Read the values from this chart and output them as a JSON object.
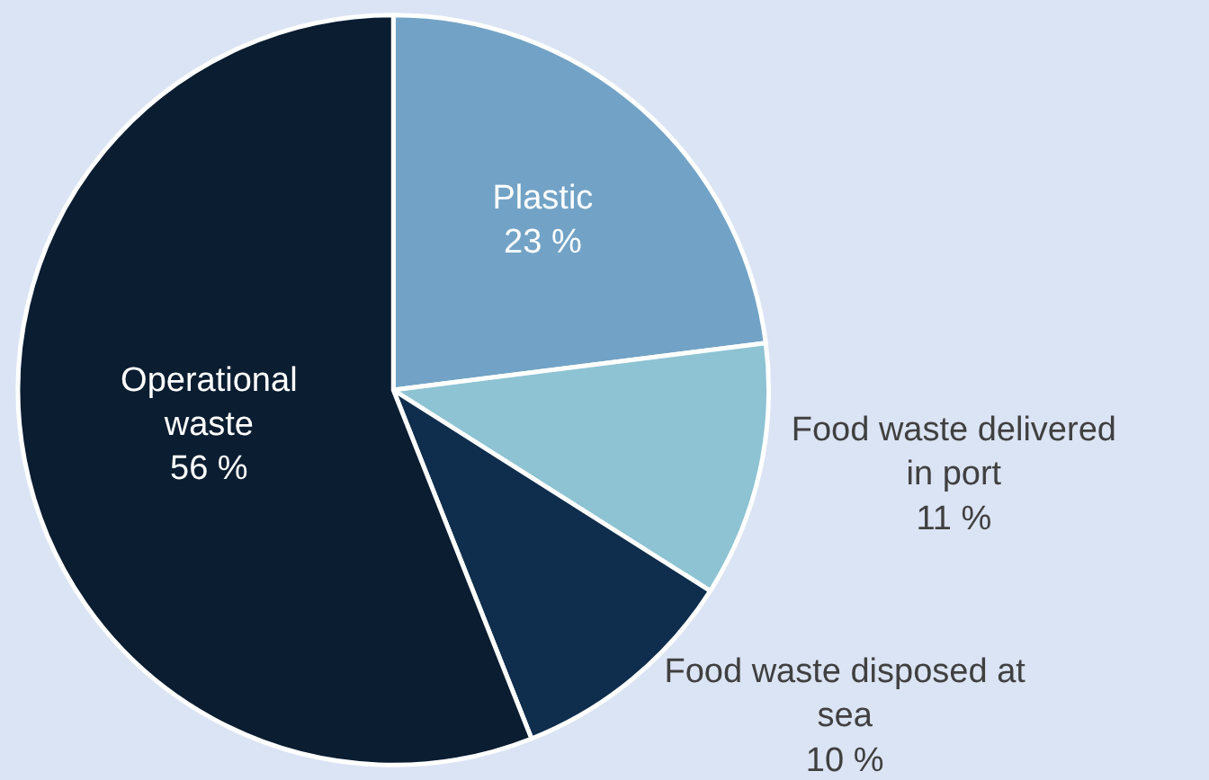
{
  "chart_data": {
    "type": "pie",
    "categories": [
      "Plastic",
      "Food waste delivered in port",
      "Food waste disposed at sea",
      "Operational waste"
    ],
    "values": [
      23,
      11,
      10,
      56
    ],
    "value_labels": [
      "23 %",
      "11 %",
      "10 %",
      "56 %"
    ],
    "colors": [
      "#72a3c6",
      "#8dc3d3",
      "#0f2e4d",
      "#0a1d31"
    ]
  }
}
